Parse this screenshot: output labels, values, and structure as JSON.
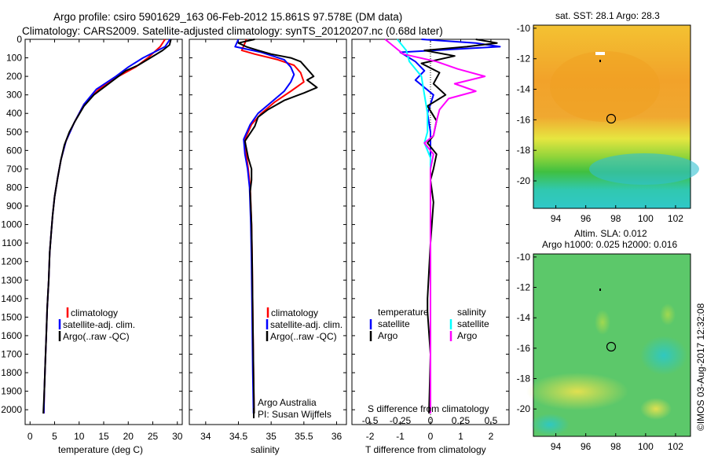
{
  "title": {
    "line1": "Argo profile: csiro 5901629_163 06-Feb-2012 15.861S 97.578E (DM data)",
    "line2": "Climatology: CARS2009. Satellite-adjusted climatology: synTS_20120207.nc (0.68d later)"
  },
  "colors": {
    "climatology": "#ff0000",
    "satellite": "#0000ff",
    "argo": "#000000",
    "sal_satellite": "#00ffff",
    "sal_argo": "#ff00ff"
  },
  "chart_data": [
    {
      "type": "line",
      "name": "temperature",
      "xlabel": "temperature (deg C)",
      "xlim": [
        -1,
        31
      ],
      "ylim": [
        0,
        2080
      ],
      "xticks": [
        "0",
        "5",
        "10",
        "15",
        "20",
        "25",
        "30"
      ],
      "yticks": [
        "0",
        "100",
        "200",
        "300",
        "400",
        "500",
        "600",
        "700",
        "800",
        "900",
        "1000",
        "1100",
        "1200",
        "1300",
        "1400",
        "1500",
        "1600",
        "1700",
        "1800",
        "1900",
        "2000"
      ],
      "legend": {
        "placement": "lower-center",
        "labels": [
          "climatology",
          "satellite-adj. clim.",
          "Argo(..raw -QC)"
        ]
      },
      "series": [
        {
          "name": "climatology",
          "color": "#ff0000",
          "points": [
            [
              27.5,
              0
            ],
            [
              26.5,
              40
            ],
            [
              24,
              100
            ],
            [
              21.5,
              150
            ],
            [
              18,
              200
            ],
            [
              14,
              270
            ],
            [
              11,
              350
            ],
            [
              9,
              450
            ],
            [
              7.3,
              550
            ],
            [
              6.3,
              650
            ],
            [
              5.6,
              750
            ],
            [
              5,
              850
            ],
            [
              4.6,
              950
            ],
            [
              4.3,
              1050
            ],
            [
              4,
              1150
            ],
            [
              3.8,
              1300
            ],
            [
              3.5,
              1450
            ],
            [
              3.3,
              1600
            ],
            [
              3.1,
              1750
            ],
            [
              2.9,
              1900
            ],
            [
              2.8,
              2020
            ]
          ]
        },
        {
          "name": "satellite-adj. clim.",
          "color": "#0000ff",
          "points": [
            [
              28.5,
              0
            ],
            [
              27.5,
              40
            ],
            [
              23,
              100
            ],
            [
              20,
              150
            ],
            [
              17.5,
              200
            ],
            [
              13.5,
              270
            ],
            [
              11,
              350
            ],
            [
              9,
              450
            ],
            [
              7.3,
              550
            ],
            [
              6.3,
              650
            ],
            [
              5.6,
              750
            ],
            [
              5,
              850
            ],
            [
              4.6,
              950
            ],
            [
              4.3,
              1050
            ],
            [
              4,
              1150
            ],
            [
              3.8,
              1300
            ],
            [
              3.5,
              1450
            ],
            [
              3.3,
              1600
            ],
            [
              3.1,
              1750
            ],
            [
              2.9,
              1900
            ],
            [
              2.8,
              2020
            ]
          ]
        },
        {
          "name": "Argo",
          "color": "#000000",
          "points": [
            [
              28.7,
              0
            ],
            [
              28.4,
              30
            ],
            [
              27,
              60
            ],
            [
              24.5,
              100
            ],
            [
              22,
              140
            ],
            [
              19.5,
              170
            ],
            [
              18,
              200
            ],
            [
              15.5,
              250
            ],
            [
              13,
              300
            ],
            [
              11,
              360
            ],
            [
              9.2,
              440
            ],
            [
              8,
              500
            ],
            [
              7,
              570
            ],
            [
              6.3,
              650
            ],
            [
              5.6,
              750
            ],
            [
              5,
              850
            ],
            [
              4.6,
              950
            ],
            [
              4.3,
              1050
            ],
            [
              4,
              1150
            ],
            [
              3.8,
              1300
            ],
            [
              3.5,
              1450
            ],
            [
              3.3,
              1600
            ],
            [
              3.1,
              1750
            ],
            [
              2.9,
              1900
            ],
            [
              2.7,
              2020
            ]
          ]
        }
      ]
    },
    {
      "type": "line",
      "name": "salinity",
      "xlabel": "salinity",
      "xlim": [
        33.75,
        36.15
      ],
      "ylim": [
        0,
        2080
      ],
      "xticks": [
        "34",
        "34.5",
        "35",
        "35.5",
        "36"
      ],
      "legend": {
        "placement": "lower-right",
        "labels": [
          "climatology",
          "satellite-adj. clim.",
          "Argo(..raw -QC)"
        ]
      },
      "annotation": {
        "line1": "Argo Australia",
        "line2": "PI: Susan Wijffels"
      },
      "series": [
        {
          "name": "climatology",
          "color": "#ff0000",
          "points": [
            [
              34.62,
              0
            ],
            [
              34.6,
              20
            ],
            [
              34.55,
              60
            ],
            [
              34.75,
              80
            ],
            [
              35.1,
              110
            ],
            [
              35.35,
              140
            ],
            [
              35.45,
              180
            ],
            [
              35.5,
              230
            ],
            [
              35.3,
              280
            ],
            [
              35.05,
              340
            ],
            [
              34.85,
              400
            ],
            [
              34.7,
              460
            ],
            [
              34.6,
              540
            ],
            [
              34.62,
              620
            ],
            [
              34.65,
              700
            ],
            [
              34.68,
              800
            ],
            [
              34.7,
              1000
            ],
            [
              34.71,
              1200
            ],
            [
              34.72,
              1500
            ],
            [
              34.73,
              1800
            ],
            [
              34.74,
              2020
            ]
          ]
        },
        {
          "name": "satellite-adj. clim.",
          "color": "#0000ff",
          "points": [
            [
              34.5,
              0
            ],
            [
              34.45,
              40
            ],
            [
              34.85,
              70
            ],
            [
              35.2,
              110
            ],
            [
              35.3,
              150
            ],
            [
              35.35,
              190
            ],
            [
              35.3,
              230
            ],
            [
              35.2,
              280
            ],
            [
              35,
              340
            ],
            [
              34.8,
              400
            ],
            [
              34.68,
              460
            ],
            [
              34.58,
              540
            ],
            [
              34.6,
              620
            ],
            [
              34.64,
              700
            ],
            [
              34.67,
              800
            ],
            [
              34.69,
              1000
            ],
            [
              34.7,
              1200
            ],
            [
              34.71,
              1500
            ],
            [
              34.72,
              1800
            ],
            [
              34.73,
              2020
            ]
          ]
        },
        {
          "name": "Argo",
          "color": "#000000",
          "points": [
            [
              34.75,
              0
            ],
            [
              34.5,
              20
            ],
            [
              34.62,
              40
            ],
            [
              34.8,
              60
            ],
            [
              35.0,
              80
            ],
            [
              35.3,
              100
            ],
            [
              35.45,
              120
            ],
            [
              35.55,
              160
            ],
            [
              35.65,
              200
            ],
            [
              35.55,
              220
            ],
            [
              35.7,
              260
            ],
            [
              35.5,
              290
            ],
            [
              35.2,
              330
            ],
            [
              34.95,
              380
            ],
            [
              34.8,
              420
            ],
            [
              34.75,
              470
            ],
            [
              34.6,
              550
            ],
            [
              34.65,
              640
            ],
            [
              34.7,
              700
            ],
            [
              34.7,
              760
            ],
            [
              34.68,
              820
            ],
            [
              34.7,
              1000
            ],
            [
              34.71,
              1200
            ],
            [
              34.72,
              1500
            ],
            [
              34.73,
              1800
            ],
            [
              34.74,
              2020
            ]
          ]
        }
      ]
    },
    {
      "type": "line",
      "name": "differences",
      "xlabel": "T difference from climatology",
      "xlabel_top": "S difference from climatology",
      "xlim": [
        -2.6,
        2.6
      ],
      "ylim": [
        0,
        2080
      ],
      "xticks_t": [
        "-2",
        "-1",
        "0",
        "1",
        "2"
      ],
      "xticks_s": [
        "-0.5",
        "-0.25",
        "0",
        "0.25",
        "0.5"
      ],
      "legend_t": {
        "heading": "temperature",
        "labels": [
          "satellite",
          "Argo"
        ]
      },
      "legend_s": {
        "heading": "salinity",
        "labels": [
          "satellite",
          "Argo"
        ]
      },
      "series": [
        {
          "name": "T satellite",
          "color": "#0000ff",
          "points": [
            [
              -0.3,
              0
            ],
            [
              1.5,
              20
            ],
            [
              2.3,
              40
            ],
            [
              -1,
              70
            ],
            [
              -0.5,
              120
            ],
            [
              -0.2,
              170
            ],
            [
              -0.5,
              220
            ],
            [
              0.1,
              300
            ],
            [
              -0.1,
              400
            ],
            [
              0,
              500
            ],
            [
              0,
              700
            ],
            [
              0,
              1000
            ],
            [
              0,
              1500
            ],
            [
              0,
              2020
            ]
          ]
        },
        {
          "name": "T Argo",
          "color": "#000000",
          "points": [
            [
              1.5,
              0
            ],
            [
              2.2,
              20
            ],
            [
              1.2,
              40
            ],
            [
              -0.2,
              60
            ],
            [
              0.8,
              90
            ],
            [
              -0.3,
              130
            ],
            [
              0.3,
              180
            ],
            [
              0.1,
              240
            ],
            [
              0.5,
              300
            ],
            [
              -0.1,
              360
            ],
            [
              0.2,
              440
            ],
            [
              0.1,
              520
            ],
            [
              -0.1,
              560
            ],
            [
              0.2,
              620
            ],
            [
              0.1,
              700
            ],
            [
              0,
              760
            ],
            [
              0.1,
              880
            ],
            [
              0,
              1100
            ],
            [
              -0.1,
              1400
            ],
            [
              -0.1,
              1470
            ],
            [
              0,
              1700
            ],
            [
              -0.05,
              2020
            ]
          ]
        },
        {
          "name": "S satellite",
          "color": "#00ffff",
          "points": [
            [
              -1.1,
              0
            ],
            [
              -0.8,
              60
            ],
            [
              -0.7,
              120
            ],
            [
              -0.3,
              200
            ],
            [
              -0.2,
              300
            ],
            [
              -0.1,
              400
            ],
            [
              -0.1,
              500
            ],
            [
              -0.2,
              560
            ],
            [
              0,
              640
            ],
            [
              0,
              800
            ],
            [
              0,
              1000
            ],
            [
              0,
              1400
            ],
            [
              0,
              1800
            ],
            [
              0,
              2020
            ]
          ]
        },
        {
          "name": "S Argo",
          "color": "#ff00ff",
          "points": [
            [
              -1.5,
              0
            ],
            [
              -1.2,
              40
            ],
            [
              -0.9,
              80
            ],
            [
              0.2,
              120
            ],
            [
              0.9,
              160
            ],
            [
              1.8,
              200
            ],
            [
              0.8,
              240
            ],
            [
              1.5,
              280
            ],
            [
              0.6,
              320
            ],
            [
              0.3,
              380
            ],
            [
              0.2,
              440
            ],
            [
              0.1,
              520
            ],
            [
              -0.2,
              560
            ],
            [
              0.1,
              620
            ],
            [
              0,
              700
            ],
            [
              0,
              800
            ],
            [
              0,
              1000
            ],
            [
              0,
              1400
            ],
            [
              0,
              1800
            ],
            [
              0,
              2020
            ]
          ]
        }
      ]
    },
    {
      "type": "heatmap",
      "name": "sst-map",
      "title": "sat. SST: 28.1  Argo: 28.3",
      "xlim": [
        92.5,
        103
      ],
      "ylim": [
        -21.8,
        -9.8
      ],
      "xticks": [
        "94",
        "96",
        "98",
        "100",
        "102"
      ],
      "yticks": [
        "-10",
        "-12",
        "-14",
        "-16",
        "-18",
        "-20"
      ],
      "marker": {
        "lon": 97.578,
        "lat": -15.861
      }
    },
    {
      "type": "heatmap",
      "name": "sla-map",
      "title_line1": "Altim. SLA: 0.012",
      "title_line2": "Argo h1000: 0.025 h2000: 0.016",
      "xlim": [
        92.5,
        103
      ],
      "ylim": [
        -21.8,
        -9.8
      ],
      "xticks": [
        "94",
        "96",
        "98",
        "100",
        "102"
      ],
      "yticks": [
        "-10",
        "-12",
        "-14",
        "-16",
        "-18",
        "-20"
      ],
      "marker": {
        "lon": 97.578,
        "lat": -15.861
      }
    }
  ],
  "footer": {
    "stamp": "©IMOS 03-Aug-2017 12:32:08"
  }
}
